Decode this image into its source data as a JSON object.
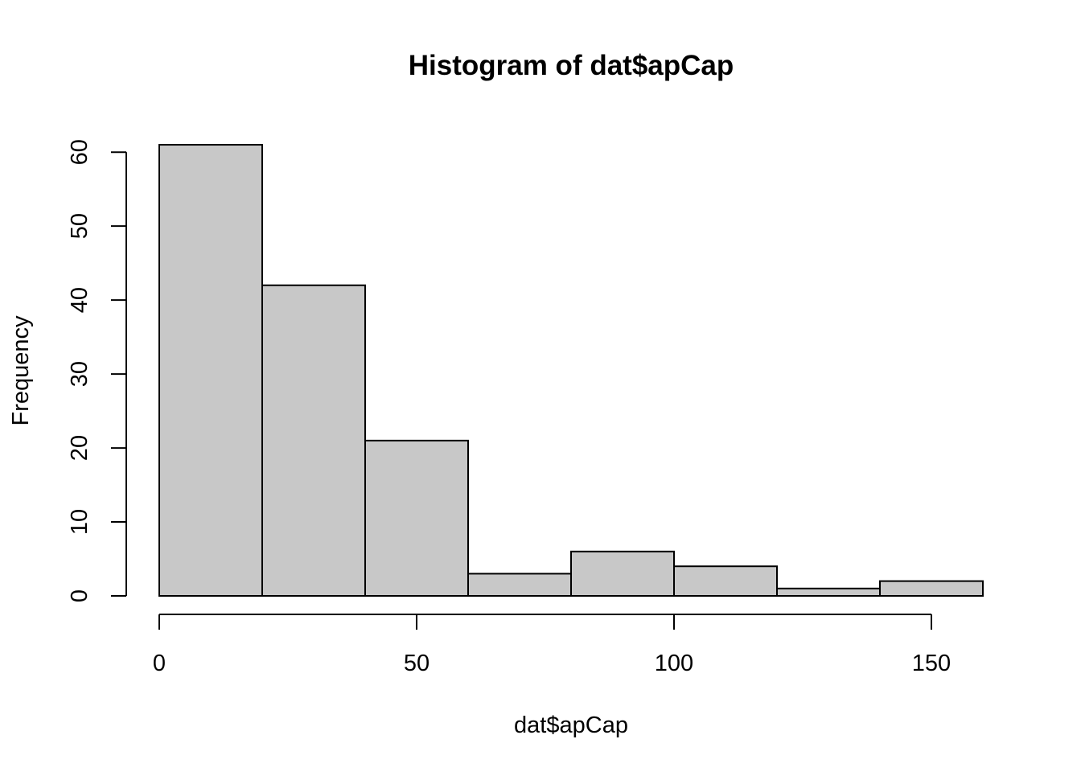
{
  "chart_data": {
    "type": "bar",
    "subtype": "histogram",
    "title": "Histogram of dat$apCap",
    "xlabel": "dat$apCap",
    "ylabel": "Frequency",
    "bins": [
      {
        "start": 0,
        "end": 20,
        "count": 61
      },
      {
        "start": 20,
        "end": 40,
        "count": 42
      },
      {
        "start": 40,
        "end": 60,
        "count": 21
      },
      {
        "start": 60,
        "end": 80,
        "count": 3
      },
      {
        "start": 80,
        "end": 100,
        "count": 6
      },
      {
        "start": 100,
        "end": 120,
        "count": 4
      },
      {
        "start": 120,
        "end": 140,
        "count": 1
      },
      {
        "start": 140,
        "end": 160,
        "count": 2
      }
    ],
    "xticks": [
      0,
      50,
      100,
      150
    ],
    "yticks": [
      0,
      10,
      20,
      30,
      40,
      50,
      60
    ],
    "xlim": [
      0,
      160
    ],
    "ylim": [
      0,
      61
    ],
    "grid": false,
    "legend": "none",
    "bar_color": "#c8c8c8",
    "edge_color": "#000000"
  }
}
